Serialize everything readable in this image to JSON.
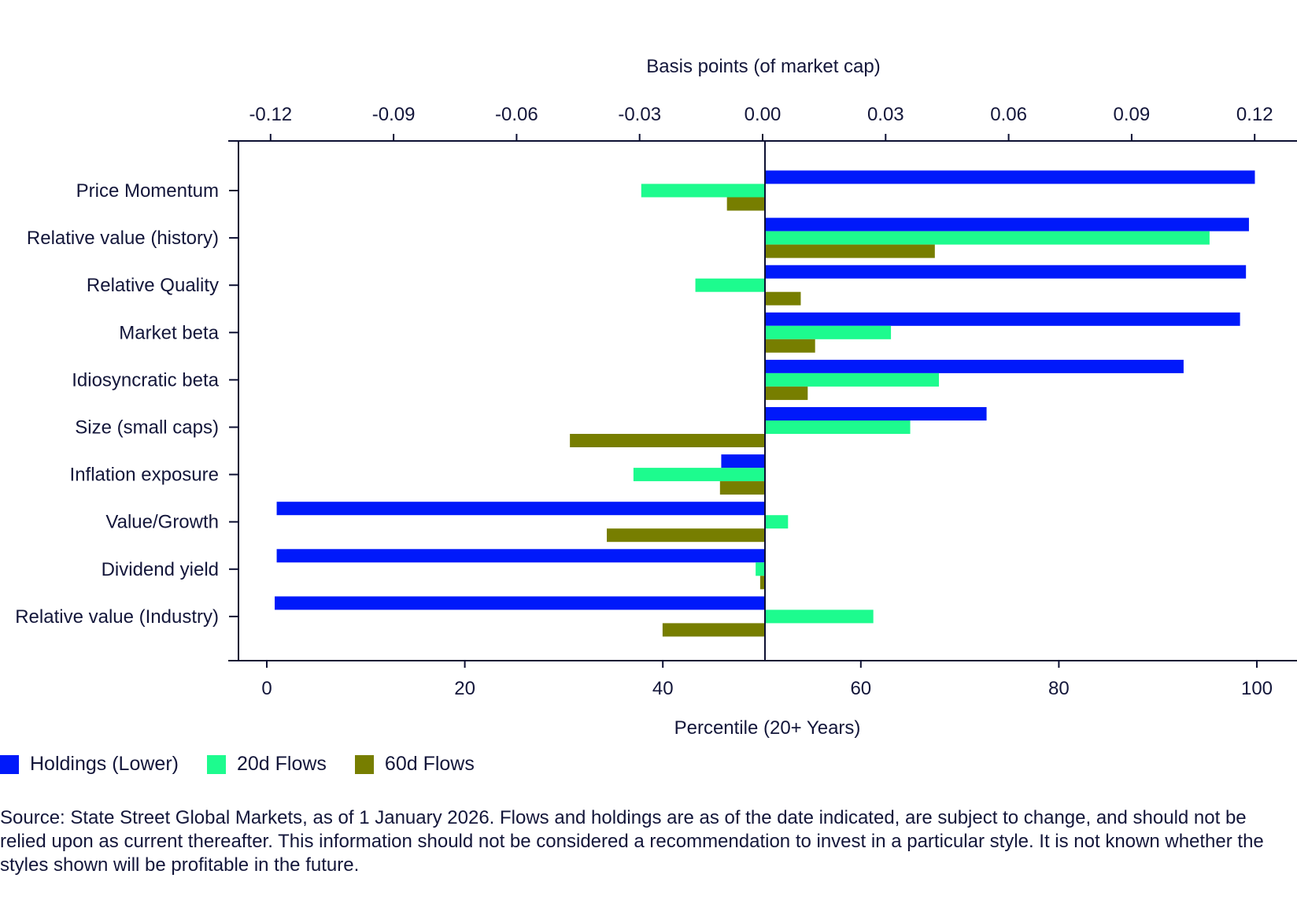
{
  "chart_data": {
    "type": "bar",
    "orientation": "horizontal",
    "top_axis": {
      "label": "Basis points (of market cap)",
      "ticks": [
        "-0.12",
        "-0.09",
        "-0.06",
        "-0.03",
        "0.00",
        "0.03",
        "0.06",
        "0.09",
        "0.12"
      ],
      "tick_values": [
        -0.12,
        -0.09,
        -0.06,
        -0.03,
        0.0,
        0.03,
        0.06,
        0.09,
        0.12
      ],
      "range": [
        -0.127,
        0.127
      ]
    },
    "bottom_axis": {
      "label": "Percentile (20+ Years)",
      "ticks": [
        "0",
        "20",
        "40",
        "60",
        "80",
        "100"
      ],
      "tick_values": [
        0,
        20,
        40,
        60,
        80,
        100
      ],
      "range": [
        -3,
        104
      ]
    },
    "categories": [
      "Price Momentum",
      "Relative value (history)",
      "Relative Quality",
      "Market beta",
      "Idiosyncratic beta",
      "Size (small caps)",
      "Inflation exposure",
      "Value/Growth",
      "Dividend yield",
      "Relative value (Industry)"
    ],
    "series": [
      {
        "name": "Holdings (Lower)",
        "axis": "bottom",
        "unit": "percentile",
        "baseline": 50,
        "color": "#0019fa",
        "values": [
          99.8,
          99.2,
          98.9,
          98.3,
          92.6,
          72.7,
          45.9,
          1.0,
          1.0,
          0.8
        ]
      },
      {
        "name": "20d Flows",
        "axis": "top",
        "unit": "basis points",
        "baseline": 0,
        "color": "#1dfb8e",
        "values": [
          -0.0296,
          0.109,
          -0.0164,
          0.0313,
          0.043,
          0.036,
          -0.0315,
          0.0062,
          -0.0017,
          0.027
        ]
      },
      {
        "name": "60d Flows",
        "axis": "top",
        "unit": "basis points",
        "baseline": 0,
        "color": "#777e00",
        "values": [
          -0.0087,
          0.042,
          0.0093,
          0.0128,
          0.011,
          -0.047,
          -0.0104,
          -0.038,
          -0.0006,
          -0.0244
        ]
      }
    ],
    "legend_position": "bottom-left",
    "grid": false
  },
  "legend": [
    {
      "label": "Holdings (Lower)",
      "color": "#0019fa"
    },
    {
      "label": "20d Flows",
      "color": "#1dfb8e"
    },
    {
      "label": "60d Flows",
      "color": "#777e00"
    }
  ],
  "source_text": "Source: State Street Global Markets, as of 1 January 2026. Flows and holdings are as of the date indicated, are subject to change, and should not be relied upon as current thereafter. This information should not be considered a recommendation to invest in a particular style. It is not known whether the styles shown will be profitable in the future."
}
